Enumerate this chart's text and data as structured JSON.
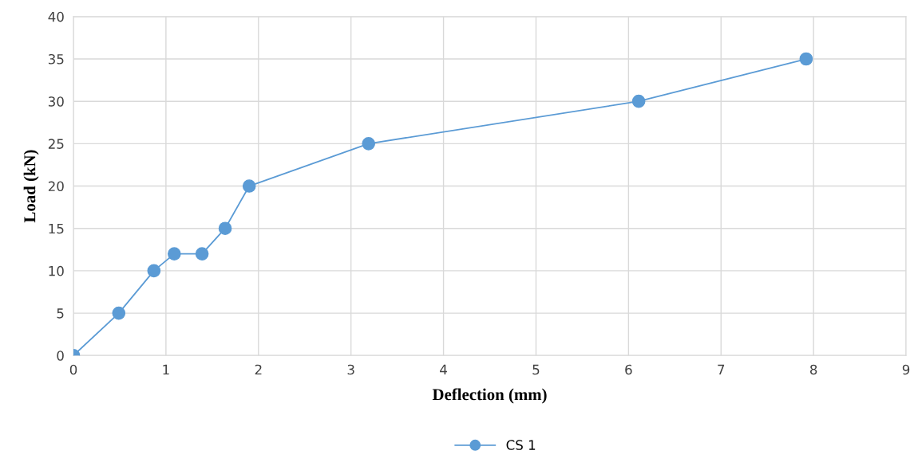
{
  "chart_data": {
    "type": "line",
    "xlabel": "Deflection (mm)",
    "ylabel": "Load (kN)",
    "series": [
      {
        "name": "CS 1",
        "color": "#5b9bd5",
        "x": [
          0,
          0.49,
          0.87,
          1.09,
          1.39,
          1.64,
          1.9,
          3.19,
          6.11,
          7.92
        ],
        "values": [
          0,
          5,
          10,
          12,
          12,
          15,
          20,
          25,
          30,
          35
        ]
      }
    ],
    "xlim": [
      0,
      9
    ],
    "xticks": [
      0,
      1,
      2,
      3,
      4,
      5,
      6,
      7,
      8,
      9
    ],
    "ylim": [
      0,
      40
    ],
    "yticks": [
      0,
      5,
      10,
      15,
      20,
      25,
      30,
      35,
      40
    ],
    "grid": true,
    "legend": "bottom",
    "marker": "circle",
    "line_style": "solid"
  }
}
